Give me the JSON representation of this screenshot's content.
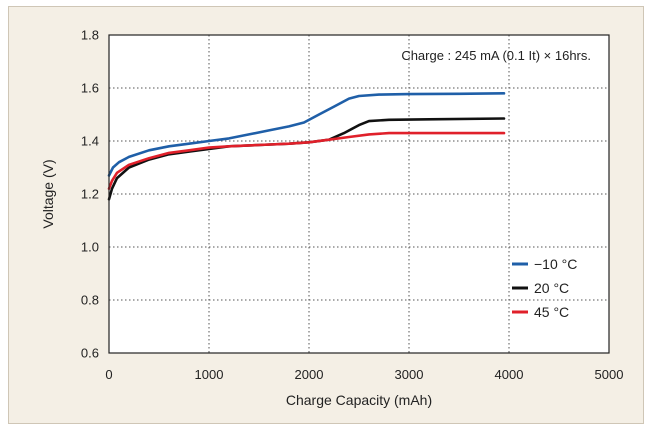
{
  "chart_data": {
    "type": "line",
    "title": "",
    "xlabel": "Charge Capacity (mAh)",
    "ylabel": "Voltage (V)",
    "xlim": [
      0,
      5000
    ],
    "ylim": [
      0.6,
      1.8
    ],
    "xticks": [
      "0",
      "1000",
      "2000",
      "3000",
      "4000",
      "5000"
    ],
    "yticks": [
      "0.6",
      "0.8",
      "1.0",
      "1.2",
      "1.4",
      "1.6",
      "1.8"
    ],
    "grid": true,
    "annotation": "Charge : 245 mA (0.1 It) × 16hrs.",
    "legend_position": "bottom-right",
    "series": [
      {
        "name": "−10 °C",
        "color": "#1f5fa8",
        "points": [
          [
            0,
            1.27
          ],
          [
            40,
            1.3
          ],
          [
            100,
            1.32
          ],
          [
            200,
            1.34
          ],
          [
            400,
            1.365
          ],
          [
            600,
            1.38
          ],
          [
            800,
            1.39
          ],
          [
            1000,
            1.4
          ],
          [
            1200,
            1.41
          ],
          [
            1400,
            1.425
          ],
          [
            1600,
            1.44
          ],
          [
            1800,
            1.455
          ],
          [
            1950,
            1.47
          ],
          [
            2100,
            1.5
          ],
          [
            2250,
            1.53
          ],
          [
            2400,
            1.56
          ],
          [
            2500,
            1.57
          ],
          [
            2700,
            1.575
          ],
          [
            3000,
            1.577
          ],
          [
            3500,
            1.578
          ],
          [
            3950,
            1.58
          ]
        ]
      },
      {
        "name": "20 °C",
        "color": "#111111",
        "points": [
          [
            0,
            1.18
          ],
          [
            30,
            1.22
          ],
          [
            80,
            1.26
          ],
          [
            200,
            1.3
          ],
          [
            400,
            1.33
          ],
          [
            600,
            1.35
          ],
          [
            800,
            1.36
          ],
          [
            1000,
            1.37
          ],
          [
            1200,
            1.38
          ],
          [
            1500,
            1.385
          ],
          [
            1800,
            1.39
          ],
          [
            2000,
            1.395
          ],
          [
            2200,
            1.405
          ],
          [
            2350,
            1.43
          ],
          [
            2500,
            1.46
          ],
          [
            2600,
            1.475
          ],
          [
            2800,
            1.48
          ],
          [
            3200,
            1.482
          ],
          [
            3950,
            1.485
          ]
        ]
      },
      {
        "name": "45 °C",
        "color": "#e0202a",
        "points": [
          [
            0,
            1.22
          ],
          [
            30,
            1.25
          ],
          [
            80,
            1.28
          ],
          [
            200,
            1.31
          ],
          [
            400,
            1.335
          ],
          [
            600,
            1.355
          ],
          [
            800,
            1.365
          ],
          [
            1000,
            1.375
          ],
          [
            1200,
            1.38
          ],
          [
            1500,
            1.385
          ],
          [
            1800,
            1.39
          ],
          [
            2000,
            1.395
          ],
          [
            2200,
            1.405
          ],
          [
            2400,
            1.415
          ],
          [
            2600,
            1.425
          ],
          [
            2800,
            1.43
          ],
          [
            3200,
            1.43
          ],
          [
            3950,
            1.43
          ]
        ]
      }
    ]
  }
}
